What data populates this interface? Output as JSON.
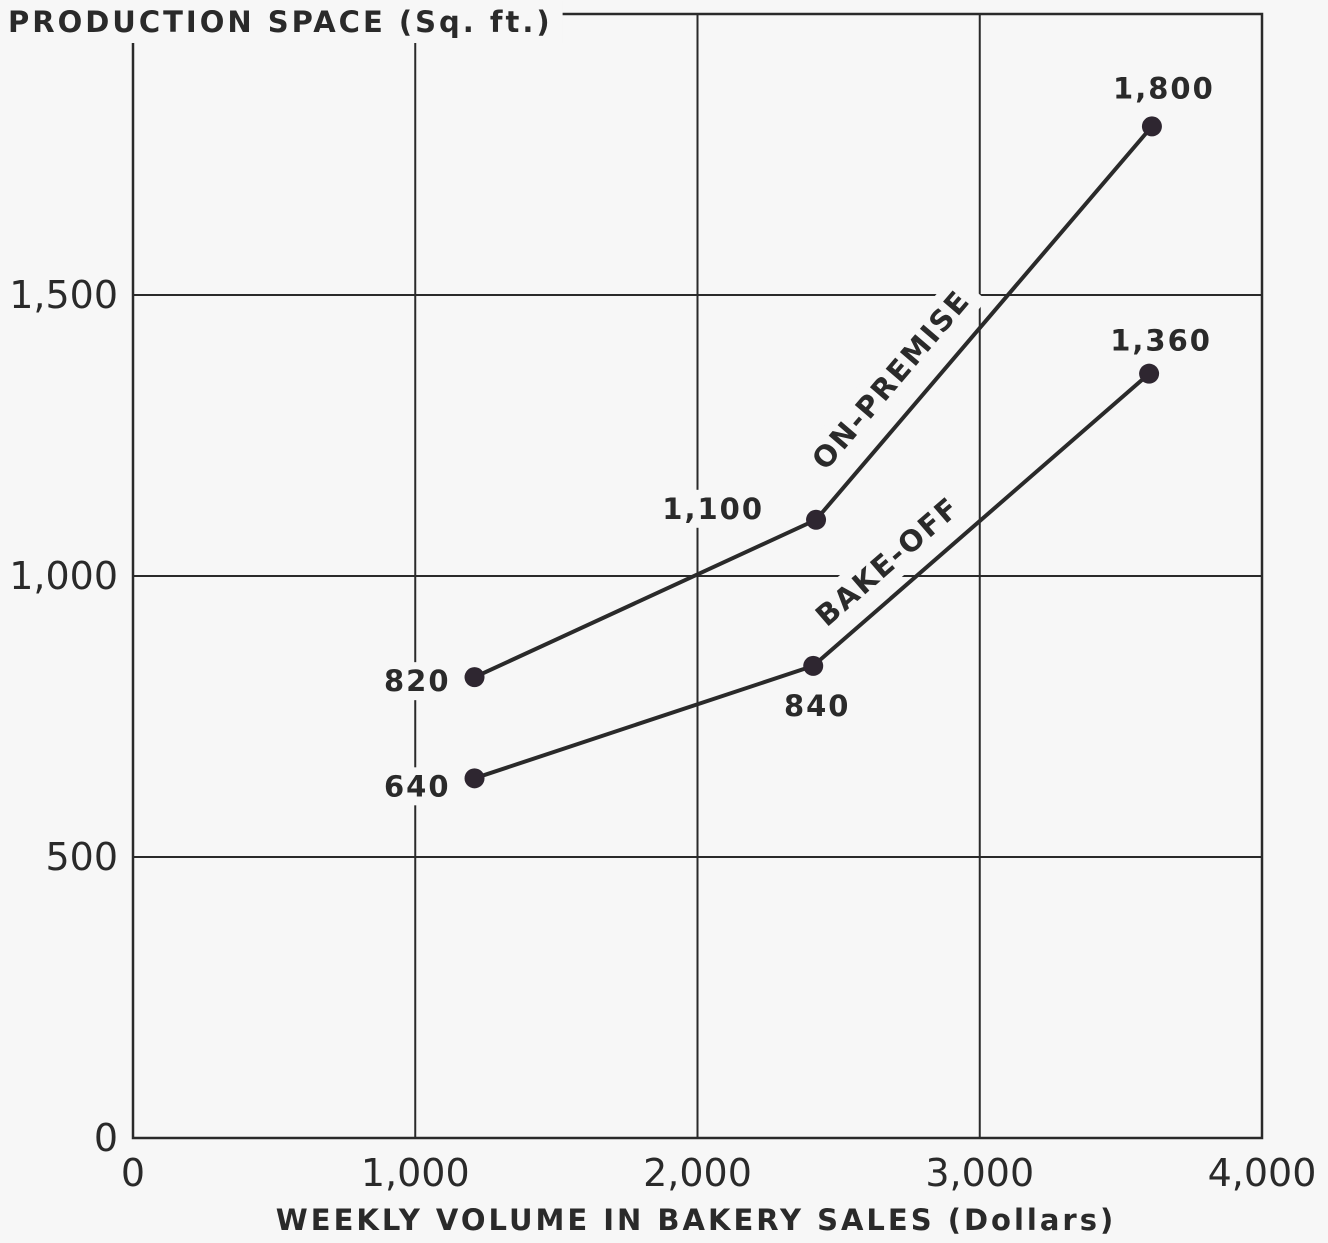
{
  "chart_data": {
    "type": "line",
    "ylabel": "PRODUCTION SPACE (Sq. ft.)",
    "xlabel": "WEEKLY VOLUME IN BAKERY SALES (Dollars)",
    "xlim": [
      0,
      4000
    ],
    "ylim": [
      0,
      2000
    ],
    "x_ticks": [
      0,
      1000,
      2000,
      3000,
      4000
    ],
    "x_tick_labels": [
      "0",
      "1,000",
      "2,000",
      "3,000",
      "4,000"
    ],
    "y_ticks": [
      0,
      500,
      1000,
      1500
    ],
    "y_tick_labels": [
      "0",
      "500",
      "1,000",
      "1,500"
    ],
    "grid": true,
    "series": [
      {
        "name": "ON-PREMISE",
        "x": [
          1210,
          2420,
          3610
        ],
        "y": [
          820,
          1100,
          1800
        ],
        "labels": [
          "820",
          "1,100",
          "1,800"
        ]
      },
      {
        "name": "BAKE-OFF",
        "x": [
          1210,
          2410,
          3600
        ],
        "y": [
          640,
          840,
          1360
        ],
        "labels": [
          "640",
          "840",
          "1,360"
        ]
      }
    ]
  }
}
